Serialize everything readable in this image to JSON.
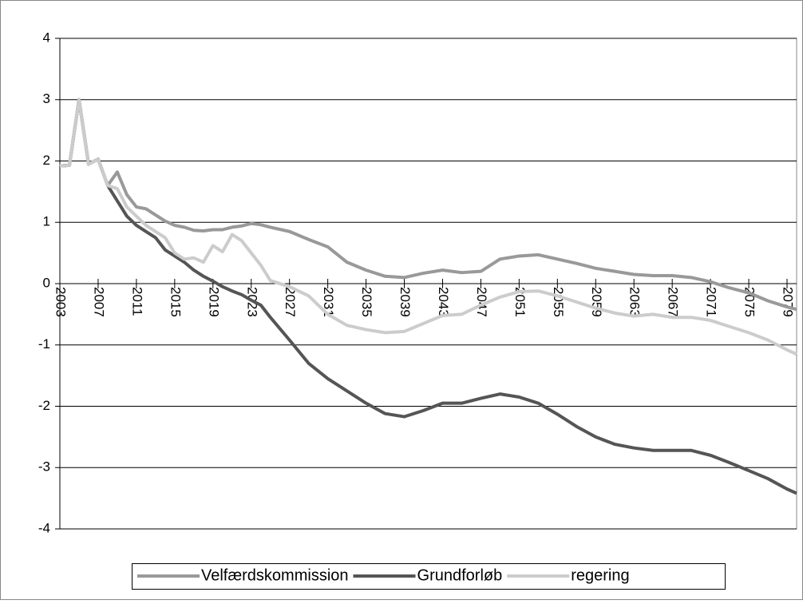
{
  "chart_data": {
    "type": "line",
    "x": [
      2003,
      2004,
      2005,
      2006,
      2007,
      2008,
      2009,
      2010,
      2011,
      2012,
      2013,
      2014,
      2015,
      2016,
      2017,
      2018,
      2019,
      2020,
      2021,
      2022,
      2023,
      2024,
      2025,
      2027,
      2029,
      2031,
      2033,
      2035,
      2037,
      2039,
      2041,
      2043,
      2045,
      2047,
      2049,
      2051,
      2053,
      2055,
      2057,
      2059,
      2061,
      2063,
      2065,
      2067,
      2069,
      2071,
      2073,
      2075,
      2077,
      2079,
      2080
    ],
    "series": [
      {
        "name": "Velfærdskommission",
        "color": "#999999",
        "values": [
          1.92,
          1.93,
          3.0,
          1.95,
          2.03,
          1.6,
          1.82,
          1.45,
          1.25,
          1.22,
          1.12,
          1.02,
          0.95,
          0.92,
          0.87,
          0.86,
          0.88,
          0.88,
          0.92,
          0.94,
          0.98,
          0.96,
          0.92,
          0.85,
          0.72,
          0.6,
          0.35,
          0.22,
          0.12,
          0.1,
          0.17,
          0.22,
          0.18,
          0.2,
          0.4,
          0.45,
          0.47,
          0.4,
          0.33,
          0.25,
          0.2,
          0.15,
          0.13,
          0.13,
          0.1,
          0.03,
          -0.07,
          -0.15,
          -0.28,
          -0.38,
          -0.42
        ]
      },
      {
        "name": "Grundforløb",
        "color": "#555555",
        "values": [
          1.92,
          1.93,
          3.0,
          1.95,
          2.03,
          1.6,
          1.35,
          1.1,
          0.95,
          0.85,
          0.75,
          0.55,
          0.45,
          0.35,
          0.22,
          0.12,
          0.04,
          -0.05,
          -0.12,
          -0.18,
          -0.27,
          -0.35,
          -0.55,
          -0.92,
          -1.3,
          -1.55,
          -1.75,
          -1.95,
          -2.12,
          -2.17,
          -2.07,
          -1.95,
          -1.95,
          -1.87,
          -1.8,
          -1.85,
          -1.95,
          -2.13,
          -2.33,
          -2.5,
          -2.62,
          -2.68,
          -2.72,
          -2.72,
          -2.72,
          -2.8,
          -2.92,
          -3.05,
          -3.18,
          -3.35,
          -3.42
        ]
      },
      {
        "name": "regering",
        "color": "#cccccc",
        "values": [
          1.92,
          1.93,
          3.0,
          1.95,
          2.03,
          1.6,
          1.55,
          1.25,
          1.1,
          0.95,
          0.85,
          0.75,
          0.5,
          0.4,
          0.42,
          0.35,
          0.62,
          0.52,
          0.8,
          0.7,
          0.5,
          0.3,
          0.05,
          -0.05,
          -0.2,
          -0.5,
          -0.68,
          -0.75,
          -0.8,
          -0.78,
          -0.65,
          -0.52,
          -0.5,
          -0.35,
          -0.22,
          -0.13,
          -0.12,
          -0.2,
          -0.3,
          -0.4,
          -0.48,
          -0.53,
          -0.5,
          -0.55,
          -0.55,
          -0.6,
          -0.7,
          -0.8,
          -0.92,
          -1.08,
          -1.15
        ]
      }
    ],
    "xlim": [
      2003,
      2080
    ],
    "xticks": [
      2003,
      2007,
      2011,
      2015,
      2019,
      2023,
      2027,
      2031,
      2035,
      2039,
      2043,
      2047,
      2051,
      2055,
      2059,
      2063,
      2067,
      2071,
      2075,
      2079
    ],
    "ylim": [
      -4,
      4
    ],
    "yticks": [
      -4,
      -3,
      -2,
      -1,
      0,
      1,
      2,
      3,
      4
    ],
    "grid": true,
    "legend": "bottom"
  }
}
